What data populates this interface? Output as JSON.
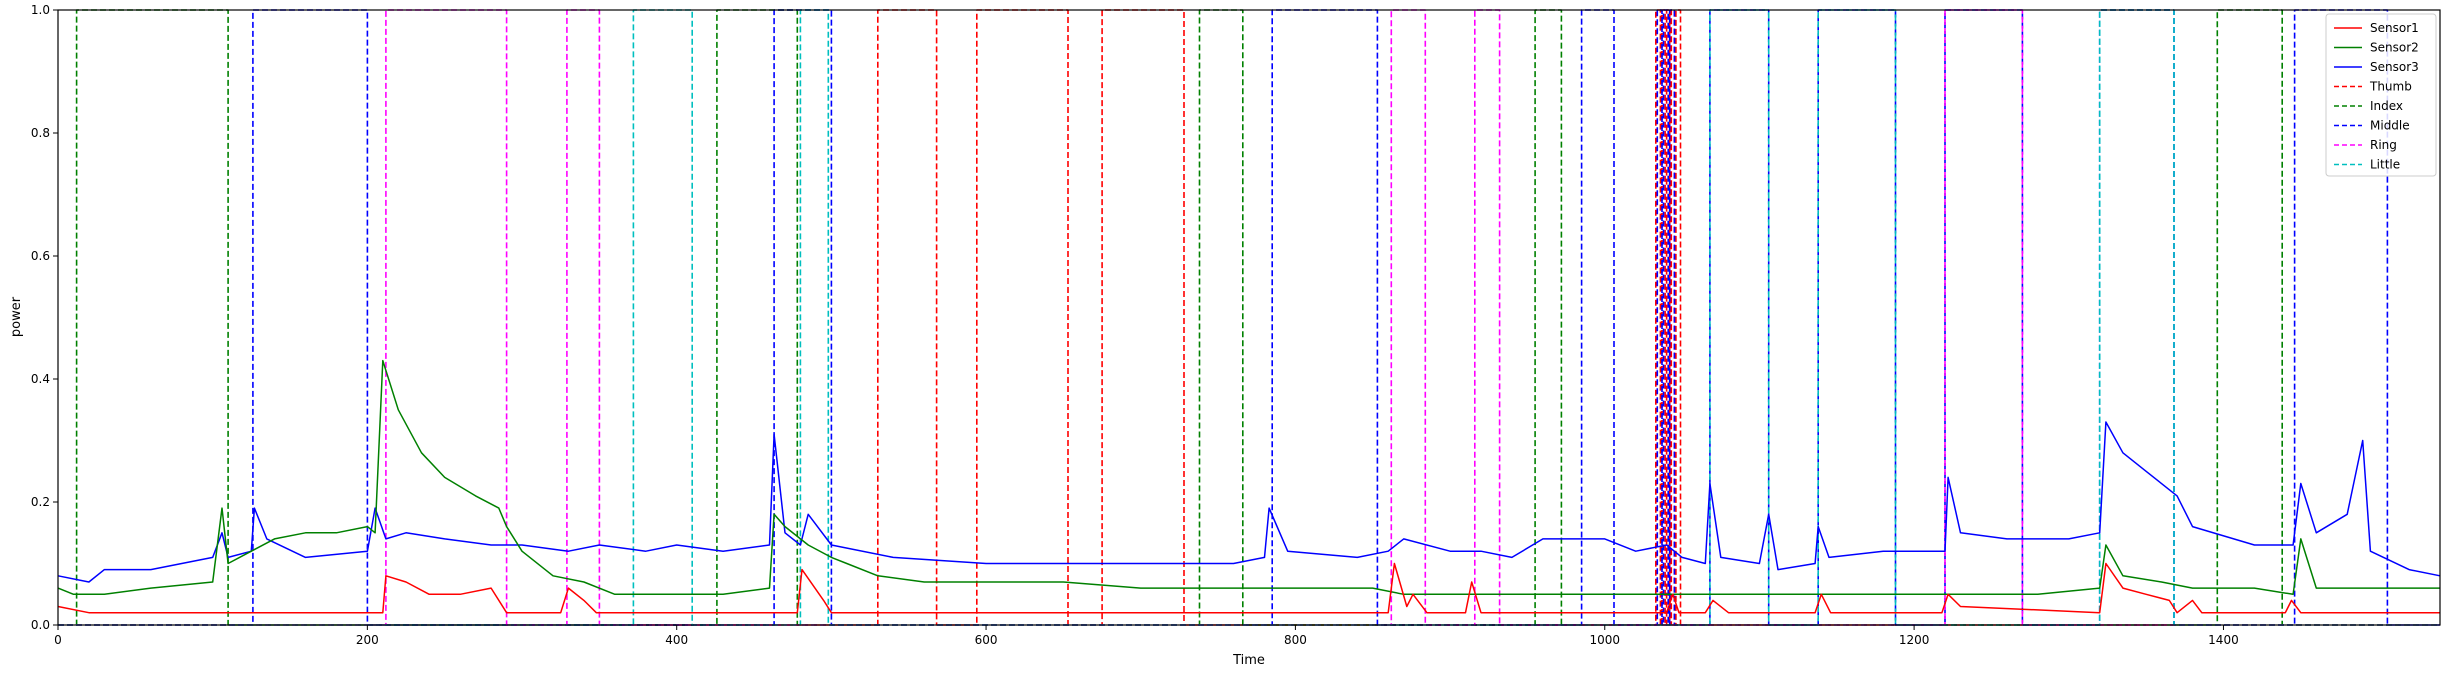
{
  "chart_data": {
    "type": "line",
    "title": "",
    "xlabel": "Time",
    "ylabel": "power",
    "xlim": [
      0,
      1540
    ],
    "ylim": [
      0,
      1.0
    ],
    "xticks": [
      0,
      200,
      400,
      600,
      800,
      1000,
      1200,
      1400
    ],
    "yticks": [
      0.0,
      0.2,
      0.4,
      0.6,
      0.8,
      1.0
    ],
    "grid": false,
    "legend_position": "top-right",
    "series": [
      {
        "name": "Sensor1",
        "color": "#ff0000",
        "style": "solid",
        "points": [
          [
            0,
            0.03
          ],
          [
            20,
            0.02
          ],
          [
            60,
            0.02
          ],
          [
            100,
            0.02
          ],
          [
            125,
            0.02
          ],
          [
            200,
            0.02
          ],
          [
            210,
            0.02
          ],
          [
            212,
            0.08
          ],
          [
            225,
            0.07
          ],
          [
            240,
            0.05
          ],
          [
            260,
            0.05
          ],
          [
            280,
            0.06
          ],
          [
            290,
            0.02
          ],
          [
            325,
            0.02
          ],
          [
            330,
            0.06
          ],
          [
            340,
            0.04
          ],
          [
            348,
            0.02
          ],
          [
            380,
            0.02
          ],
          [
            460,
            0.02
          ],
          [
            466,
            0.02
          ],
          [
            478,
            0.02
          ],
          [
            481,
            0.09
          ],
          [
            495,
            0.04
          ],
          [
            500,
            0.02
          ],
          [
            560,
            0.02
          ],
          [
            600,
            0.02
          ],
          [
            780,
            0.02
          ],
          [
            860,
            0.02
          ],
          [
            864,
            0.1
          ],
          [
            872,
            0.03
          ],
          [
            876,
            0.05
          ],
          [
            885,
            0.02
          ],
          [
            910,
            0.02
          ],
          [
            914,
            0.07
          ],
          [
            920,
            0.02
          ],
          [
            1040,
            0.02
          ],
          [
            1044,
            0.05
          ],
          [
            1048,
            0.02
          ],
          [
            1065,
            0.02
          ],
          [
            1070,
            0.04
          ],
          [
            1080,
            0.02
          ],
          [
            1136,
            0.02
          ],
          [
            1140,
            0.05
          ],
          [
            1146,
            0.02
          ],
          [
            1218,
            0.02
          ],
          [
            1222,
            0.05
          ],
          [
            1230,
            0.03
          ],
          [
            1320,
            0.02
          ],
          [
            1324,
            0.1
          ],
          [
            1335,
            0.06
          ],
          [
            1350,
            0.05
          ],
          [
            1365,
            0.04
          ],
          [
            1370,
            0.02
          ],
          [
            1380,
            0.04
          ],
          [
            1386,
            0.02
          ],
          [
            1440,
            0.02
          ],
          [
            1444,
            0.04
          ],
          [
            1450,
            0.02
          ],
          [
            1540,
            0.02
          ]
        ]
      },
      {
        "name": "Sensor2",
        "color": "#008000",
        "style": "solid",
        "points": [
          [
            0,
            0.06
          ],
          [
            10,
            0.05
          ],
          [
            30,
            0.05
          ],
          [
            60,
            0.06
          ],
          [
            100,
            0.07
          ],
          [
            106,
            0.19
          ],
          [
            110,
            0.1
          ],
          [
            125,
            0.12
          ],
          [
            140,
            0.14
          ],
          [
            160,
            0.15
          ],
          [
            180,
            0.15
          ],
          [
            200,
            0.16
          ],
          [
            205,
            0.15
          ],
          [
            210,
            0.43
          ],
          [
            220,
            0.35
          ],
          [
            235,
            0.28
          ],
          [
            250,
            0.24
          ],
          [
            270,
            0.21
          ],
          [
            285,
            0.19
          ],
          [
            290,
            0.16
          ],
          [
            300,
            0.12
          ],
          [
            320,
            0.08
          ],
          [
            340,
            0.07
          ],
          [
            360,
            0.05
          ],
          [
            400,
            0.05
          ],
          [
            430,
            0.05
          ],
          [
            460,
            0.06
          ],
          [
            463,
            0.18
          ],
          [
            470,
            0.16
          ],
          [
            485,
            0.13
          ],
          [
            500,
            0.11
          ],
          [
            510,
            0.1
          ],
          [
            530,
            0.08
          ],
          [
            560,
            0.07
          ],
          [
            600,
            0.07
          ],
          [
            650,
            0.07
          ],
          [
            700,
            0.06
          ],
          [
            760,
            0.06
          ],
          [
            800,
            0.06
          ],
          [
            850,
            0.06
          ],
          [
            870,
            0.05
          ],
          [
            900,
            0.05
          ],
          [
            940,
            0.05
          ],
          [
            1000,
            0.05
          ],
          [
            1040,
            0.05
          ],
          [
            1080,
            0.05
          ],
          [
            1120,
            0.05
          ],
          [
            1180,
            0.05
          ],
          [
            1220,
            0.05
          ],
          [
            1280,
            0.05
          ],
          [
            1320,
            0.06
          ],
          [
            1324,
            0.13
          ],
          [
            1335,
            0.08
          ],
          [
            1360,
            0.07
          ],
          [
            1380,
            0.06
          ],
          [
            1420,
            0.06
          ],
          [
            1445,
            0.05
          ],
          [
            1450,
            0.14
          ],
          [
            1460,
            0.06
          ],
          [
            1500,
            0.06
          ],
          [
            1540,
            0.06
          ]
        ]
      },
      {
        "name": "Sensor3",
        "color": "#0000ff",
        "style": "solid",
        "points": [
          [
            0,
            0.08
          ],
          [
            20,
            0.07
          ],
          [
            30,
            0.09
          ],
          [
            60,
            0.09
          ],
          [
            100,
            0.11
          ],
          [
            106,
            0.15
          ],
          [
            110,
            0.11
          ],
          [
            125,
            0.12
          ],
          [
            127,
            0.19
          ],
          [
            135,
            0.14
          ],
          [
            160,
            0.11
          ],
          [
            200,
            0.12
          ],
          [
            205,
            0.19
          ],
          [
            212,
            0.14
          ],
          [
            225,
            0.15
          ],
          [
            250,
            0.14
          ],
          [
            280,
            0.13
          ],
          [
            300,
            0.13
          ],
          [
            330,
            0.12
          ],
          [
            350,
            0.13
          ],
          [
            380,
            0.12
          ],
          [
            400,
            0.13
          ],
          [
            430,
            0.12
          ],
          [
            460,
            0.13
          ],
          [
            463,
            0.31
          ],
          [
            470,
            0.15
          ],
          [
            480,
            0.13
          ],
          [
            485,
            0.18
          ],
          [
            500,
            0.13
          ],
          [
            540,
            0.11
          ],
          [
            600,
            0.1
          ],
          [
            650,
            0.1
          ],
          [
            700,
            0.1
          ],
          [
            760,
            0.1
          ],
          [
            780,
            0.11
          ],
          [
            783,
            0.19
          ],
          [
            795,
            0.12
          ],
          [
            840,
            0.11
          ],
          [
            860,
            0.12
          ],
          [
            870,
            0.14
          ],
          [
            900,
            0.12
          ],
          [
            920,
            0.12
          ],
          [
            940,
            0.11
          ],
          [
            960,
            0.14
          ],
          [
            985,
            0.14
          ],
          [
            1000,
            0.14
          ],
          [
            1020,
            0.12
          ],
          [
            1040,
            0.13
          ],
          [
            1050,
            0.11
          ],
          [
            1065,
            0.1
          ],
          [
            1068,
            0.23
          ],
          [
            1075,
            0.11
          ],
          [
            1100,
            0.1
          ],
          [
            1106,
            0.18
          ],
          [
            1112,
            0.09
          ],
          [
            1136,
            0.1
          ],
          [
            1138,
            0.16
          ],
          [
            1145,
            0.11
          ],
          [
            1180,
            0.12
          ],
          [
            1200,
            0.12
          ],
          [
            1220,
            0.12
          ],
          [
            1222,
            0.24
          ],
          [
            1230,
            0.15
          ],
          [
            1260,
            0.14
          ],
          [
            1300,
            0.14
          ],
          [
            1320,
            0.15
          ],
          [
            1324,
            0.33
          ],
          [
            1335,
            0.28
          ],
          [
            1350,
            0.25
          ],
          [
            1370,
            0.21
          ],
          [
            1380,
            0.16
          ],
          [
            1420,
            0.13
          ],
          [
            1445,
            0.13
          ],
          [
            1450,
            0.23
          ],
          [
            1460,
            0.15
          ],
          [
            1480,
            0.18
          ],
          [
            1490,
            0.3
          ],
          [
            1495,
            0.12
          ],
          [
            1520,
            0.09
          ],
          [
            1540,
            0.08
          ]
        ]
      },
      {
        "name": "Thumb",
        "color": "#ff0000",
        "style": "dashed",
        "intervals": [
          [
            530,
            568
          ],
          [
            594,
            653
          ],
          [
            675,
            728
          ],
          [
            1033,
            1036
          ],
          [
            1037,
            1039
          ],
          [
            1040,
            1042
          ],
          [
            1043,
            1045
          ],
          [
            1046,
            1049
          ]
        ]
      },
      {
        "name": "Index",
        "color": "#008000",
        "style": "dashed",
        "intervals": [
          [
            12,
            110
          ],
          [
            426,
            478
          ],
          [
            738,
            766
          ],
          [
            955,
            972
          ],
          [
            1396,
            1438
          ]
        ]
      },
      {
        "name": "Middle",
        "color": "#0000ff",
        "style": "dashed",
        "intervals": [
          [
            126,
            200
          ],
          [
            463,
            500
          ],
          [
            785,
            853
          ],
          [
            985,
            1006
          ],
          [
            1034,
            1037
          ],
          [
            1038,
            1041
          ],
          [
            1042,
            1045
          ],
          [
            1068,
            1106
          ],
          [
            1138,
            1188
          ],
          [
            1220,
            1270
          ],
          [
            1320,
            1368
          ],
          [
            1446,
            1506
          ]
        ]
      },
      {
        "name": "Ring",
        "color": "#ff00ff",
        "style": "dashed",
        "intervals": [
          [
            212,
            290
          ],
          [
            329,
            350
          ],
          [
            862,
            884
          ],
          [
            916,
            932
          ],
          [
            1220,
            1270
          ]
        ]
      },
      {
        "name": "Little",
        "color": "#00bfbf",
        "style": "dashed",
        "intervals": [
          [
            372,
            410
          ],
          [
            480,
            498
          ],
          [
            1068,
            1106
          ],
          [
            1138,
            1188
          ],
          [
            1320,
            1368
          ]
        ]
      }
    ]
  }
}
